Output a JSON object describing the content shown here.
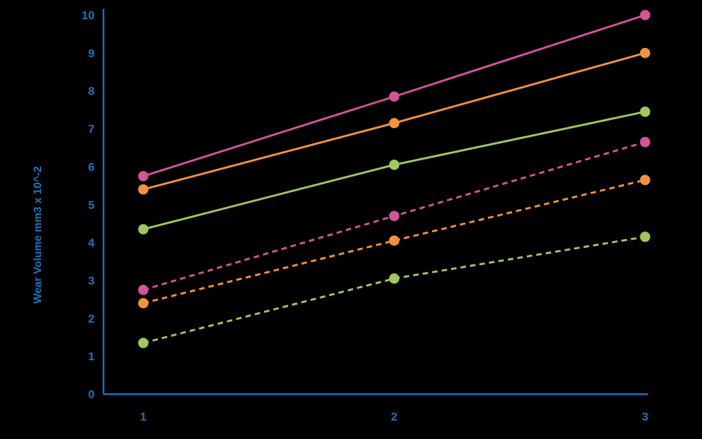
{
  "chart_data": {
    "type": "line",
    "title": "",
    "xlabel": "",
    "ylabel": "Wear Volume mm3 x 10^-2",
    "x": [
      1,
      2,
      3
    ],
    "x_tick_labels": [
      "1",
      "2",
      "3"
    ],
    "y_ticks": [
      "0",
      "1",
      "2",
      "3",
      "4",
      "5",
      "6",
      "7",
      "8",
      "9",
      "10"
    ],
    "ylim": [
      0,
      10
    ],
    "grid": false,
    "legend_position": "none",
    "axis_color": "#1b75bc",
    "background_color": "#000000",
    "series": [
      {
        "name": "solid-pink",
        "color": "#d4539b",
        "style": "solid",
        "values": [
          5.75,
          7.85,
          10.0
        ]
      },
      {
        "name": "solid-orange",
        "color": "#f3913d",
        "style": "solid",
        "values": [
          5.4,
          7.15,
          9.0
        ]
      },
      {
        "name": "solid-green",
        "color": "#a0c85a",
        "style": "solid",
        "values": [
          4.35,
          6.05,
          7.45
        ]
      },
      {
        "name": "dashed-pink",
        "color": "#d4539b",
        "style": "dashed",
        "values": [
          2.75,
          4.7,
          6.65
        ]
      },
      {
        "name": "dashed-orange",
        "color": "#f3913d",
        "style": "dashed",
        "values": [
          2.4,
          4.05,
          5.65
        ]
      },
      {
        "name": "dashed-green",
        "color": "#a0c85a",
        "style": "dashed",
        "values": [
          1.35,
          3.05,
          4.15
        ]
      }
    ]
  }
}
